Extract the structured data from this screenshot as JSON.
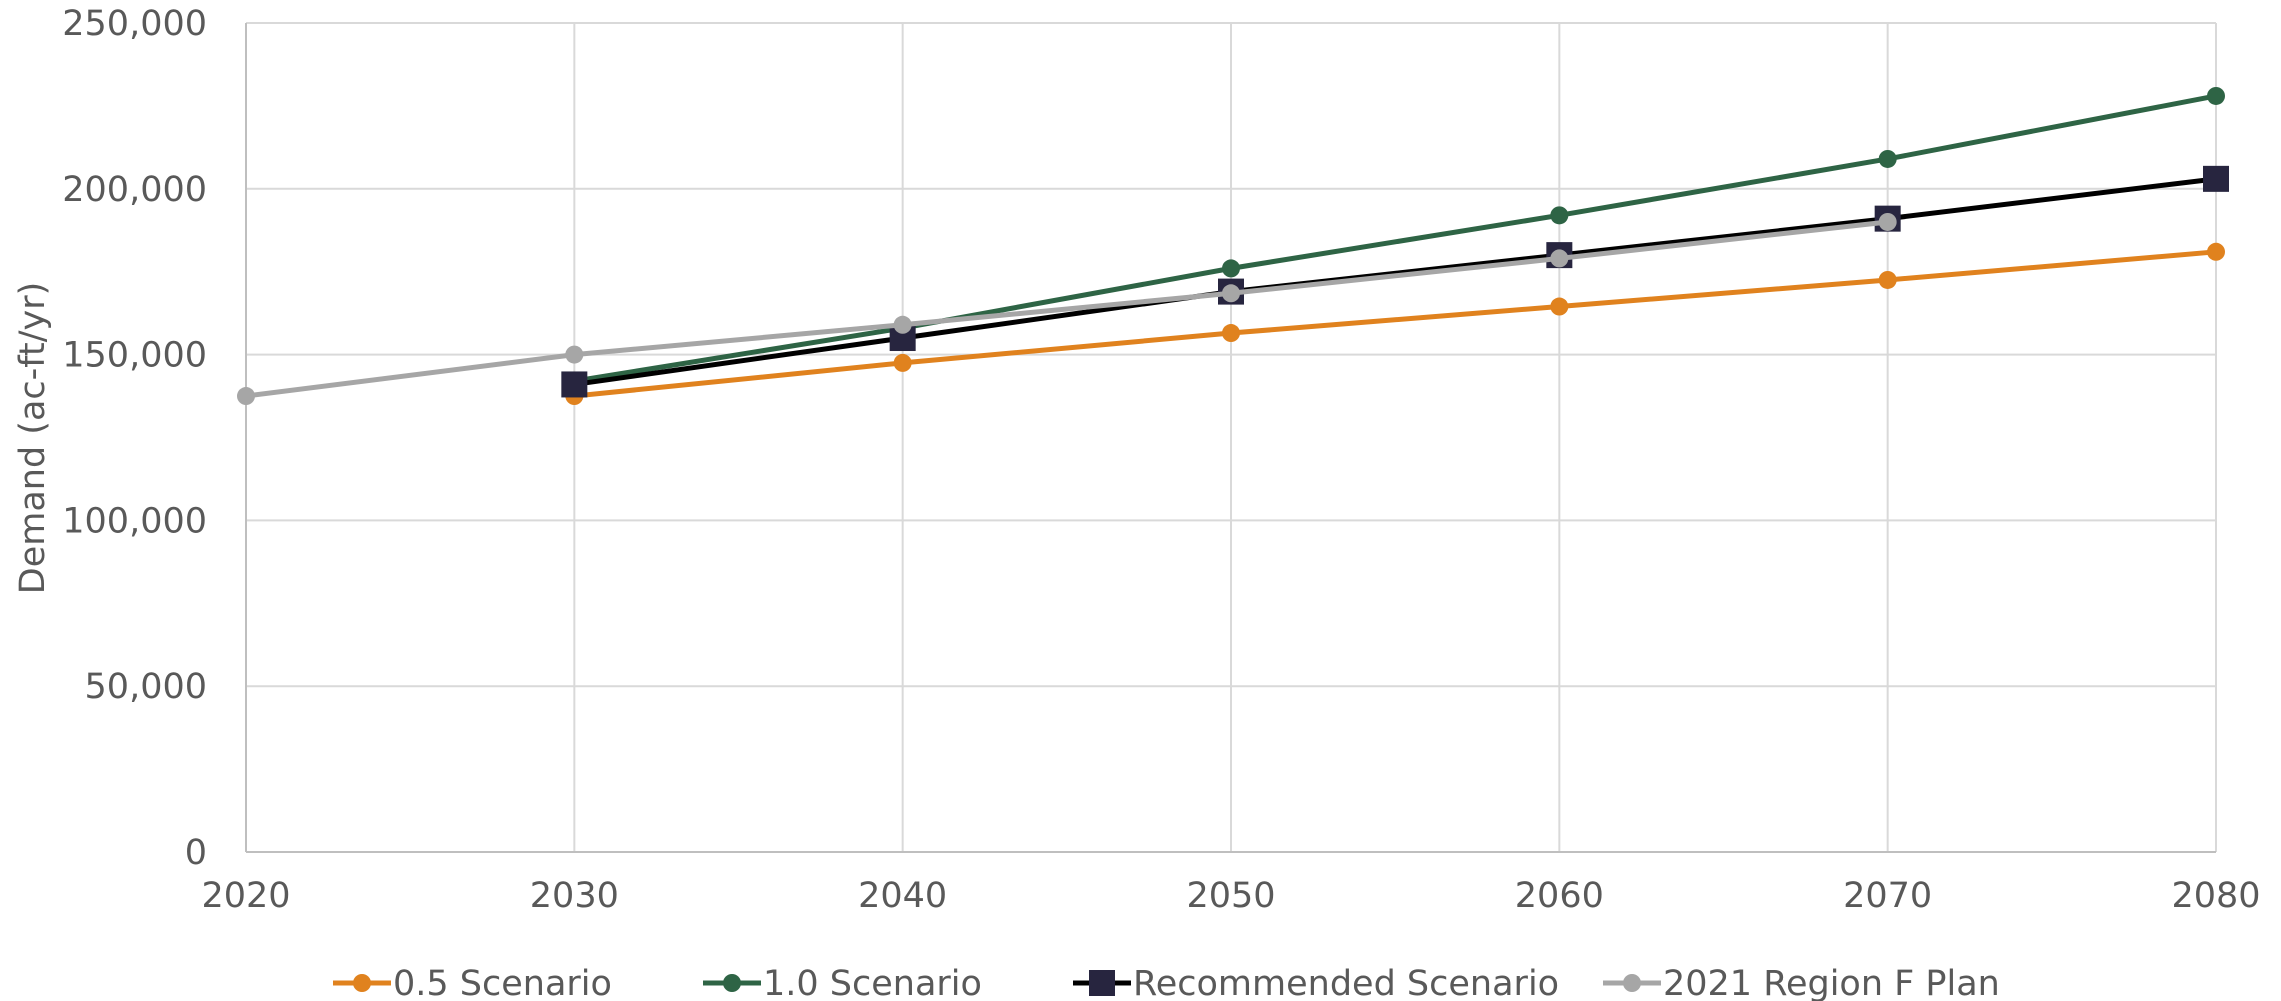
{
  "chart_data": {
    "type": "line",
    "title": "",
    "xlabel": "",
    "ylabel": "Demand (ac-ft/yr)",
    "xlim": [
      2020,
      2080
    ],
    "ylim": [
      0,
      250000
    ],
    "x_ticks": [
      "2020",
      "2030",
      "2040",
      "2050",
      "2060",
      "2070",
      "2080"
    ],
    "y_ticks": [
      "0",
      "50,000",
      "100,000",
      "150,000",
      "200,000",
      "250,000"
    ],
    "grid": true,
    "legend_position": "bottom",
    "series": [
      {
        "name": "0.5 Scenario",
        "color": "#E0821E",
        "marker": "circle",
        "points": [
          [
            2030,
            137500
          ],
          [
            2040,
            147500
          ],
          [
            2050,
            156500
          ],
          [
            2060,
            164500
          ],
          [
            2070,
            172500
          ],
          [
            2080,
            181000
          ]
        ]
      },
      {
        "name": "1.0 Scenario",
        "color": "#2E6445",
        "marker": "circle",
        "points": [
          [
            2030,
            142000
          ],
          [
            2040,
            158000
          ],
          [
            2050,
            176000
          ],
          [
            2060,
            192000
          ],
          [
            2070,
            209000
          ],
          [
            2080,
            228000
          ]
        ]
      },
      {
        "name": "Recommended Scenario",
        "color": "#000000",
        "marker_color": "#27253F",
        "marker": "square",
        "points": [
          [
            2030,
            141000
          ],
          [
            2040,
            155000
          ],
          [
            2050,
            169000
          ],
          [
            2060,
            180000
          ],
          [
            2070,
            191000
          ],
          [
            2080,
            203000
          ]
        ]
      },
      {
        "name": "2021 Region F Plan",
        "color": "#A6A6A6",
        "marker": "circle",
        "points": [
          [
            2020,
            137500
          ],
          [
            2030,
            150000
          ],
          [
            2040,
            159000
          ],
          [
            2050,
            168500
          ],
          [
            2060,
            179000
          ],
          [
            2070,
            190000
          ]
        ]
      }
    ]
  }
}
